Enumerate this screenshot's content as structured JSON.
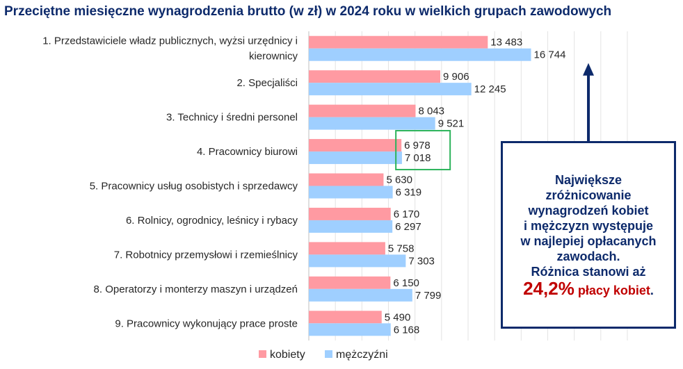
{
  "title": "Przeciętne miesięczne wynagrodzenia brutto (w zł) w 2024 roku w wielkich grupach zawodowych",
  "callout": {
    "lines": [
      "Największe",
      "zróżnicowanie",
      "wynagrodzeń kobiet",
      "i mężczyzn występuje",
      "w najlepiej opłacanych",
      "zawodach.",
      "Różnica stanowi aż"
    ],
    "percent": "24,2%",
    "percent_suffix": " płacy kobiet",
    "end": "."
  },
  "chart_data": {
    "type": "bar",
    "orientation": "horizontal",
    "categories": [
      [
        "1. Przedstawiciele władz publicznych, wyżsi urzędnicy i",
        "kierownicy"
      ],
      [
        "2. Specjaliści"
      ],
      [
        "3. Technicy i średni personel"
      ],
      [
        "4. Pracownicy biurowi"
      ],
      [
        "5. Pracownicy usług osobistych i sprzedawcy"
      ],
      [
        "6. Rolnicy, ogrodnicy, leśnicy i rybacy"
      ],
      [
        "7. Robotnicy przemysłowi i rzemieślnicy"
      ],
      [
        "8. Operatorzy i monterzy maszyn i urządzeń"
      ],
      [
        "9. Pracownicy wykonujący prace proste"
      ]
    ],
    "series": [
      {
        "name": "kobiety",
        "color": "#ff9aa2",
        "values": [
          13483,
          9906,
          8043,
          6978,
          5630,
          6170,
          5758,
          6150,
          5490
        ],
        "labels": [
          "13 483",
          "9 906",
          "8 043",
          "6 978",
          "5 630",
          "6 170",
          "5 758",
          "6 150",
          "5 490"
        ]
      },
      {
        "name": "mężczyźni",
        "color": "#9fcfff",
        "values": [
          16744,
          12245,
          9521,
          7018,
          6319,
          6297,
          7303,
          7799,
          6168
        ],
        "labels": [
          "16 744",
          "12 245",
          "9 521",
          "7 018",
          "6 319",
          "6 297",
          "7 303",
          "7 799",
          "6 168"
        ]
      }
    ],
    "xlim": [
      0,
      24000
    ],
    "grid": true,
    "legend_position": "bottom",
    "highlight_category_index": 3,
    "arrow_target_category_index": 0
  }
}
